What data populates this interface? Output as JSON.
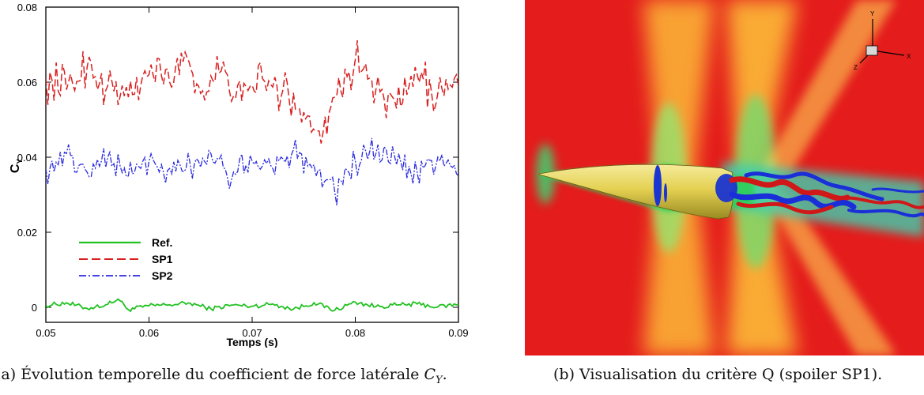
{
  "chart_data": {
    "type": "line",
    "xlabel": "Temps (s)",
    "ylabel_main": "C",
    "ylabel_sub": "Y",
    "xlim": [
      0.05,
      0.09
    ],
    "ylim": [
      -0.004,
      0.08
    ],
    "x_ticks": [
      "0.05",
      "0.06",
      "0.07",
      "0.08",
      "0.09"
    ],
    "y_ticks": [
      "0",
      "0.02",
      "0.04",
      "0.06",
      "0.08"
    ],
    "legend_placement": "lower-left",
    "series": [
      {
        "name": "Ref.",
        "color": "#22c122",
        "style": "solid",
        "x": [
          0.05,
          0.052,
          0.054,
          0.056,
          0.057,
          0.058,
          0.06,
          0.062,
          0.064,
          0.066,
          0.068,
          0.07,
          0.072,
          0.074,
          0.076,
          0.078,
          0.08,
          0.082,
          0.084,
          0.086,
          0.088,
          0.09
        ],
        "y": [
          0.0005,
          0.0012,
          -0.0003,
          0.0008,
          0.0022,
          -0.0006,
          0.0004,
          0.0007,
          0.0011,
          -0.0004,
          0.0006,
          0.0003,
          0.0009,
          -0.0005,
          0.0012,
          -0.0008,
          0.0014,
          0.0002,
          0.0006,
          0.0009,
          0.0001,
          0.0008
        ]
      },
      {
        "name": "SP1",
        "color": "#d92020",
        "style": "dashed",
        "x": [
          0.05,
          0.052,
          0.054,
          0.056,
          0.058,
          0.06,
          0.062,
          0.0635,
          0.065,
          0.067,
          0.069,
          0.071,
          0.073,
          0.075,
          0.0765,
          0.078,
          0.08,
          0.082,
          0.084,
          0.086,
          0.088,
          0.09
        ],
        "y": [
          0.061,
          0.058,
          0.064,
          0.059,
          0.056,
          0.062,
          0.06,
          0.068,
          0.057,
          0.063,
          0.055,
          0.061,
          0.058,
          0.052,
          0.047,
          0.056,
          0.066,
          0.058,
          0.053,
          0.062,
          0.057,
          0.059
        ]
      },
      {
        "name": "SP2",
        "color": "#2a2ae0",
        "style": "dash-dot",
        "x": [
          0.05,
          0.052,
          0.054,
          0.056,
          0.058,
          0.06,
          0.062,
          0.064,
          0.066,
          0.068,
          0.07,
          0.072,
          0.074,
          0.076,
          0.078,
          0.08,
          0.082,
          0.084,
          0.086,
          0.088,
          0.09
        ],
        "y": [
          0.037,
          0.041,
          0.036,
          0.04,
          0.035,
          0.039,
          0.037,
          0.038,
          0.041,
          0.034,
          0.039,
          0.037,
          0.042,
          0.038,
          0.031,
          0.039,
          0.041,
          0.038,
          0.036,
          0.04,
          0.035
        ]
      }
    ]
  },
  "figure_b": {
    "axis_labels": {
      "x": "X",
      "y": "Y",
      "z": "Z"
    },
    "colors": {
      "background": "#e41c1c",
      "shock": "#ffd23c",
      "near_field": "#2fd05a",
      "body": "#e3d04a",
      "vortex_red": "#d01818",
      "vortex_blue": "#1a2fd8"
    }
  },
  "captions": {
    "a_text": "(a) Évolution temporelle du coefficient de force latérale ",
    "a_math_main": "C",
    "a_math_sub": "Y",
    "a_end": ".",
    "b": "(b) Visualisation du critère Q (spoiler SP1)."
  }
}
